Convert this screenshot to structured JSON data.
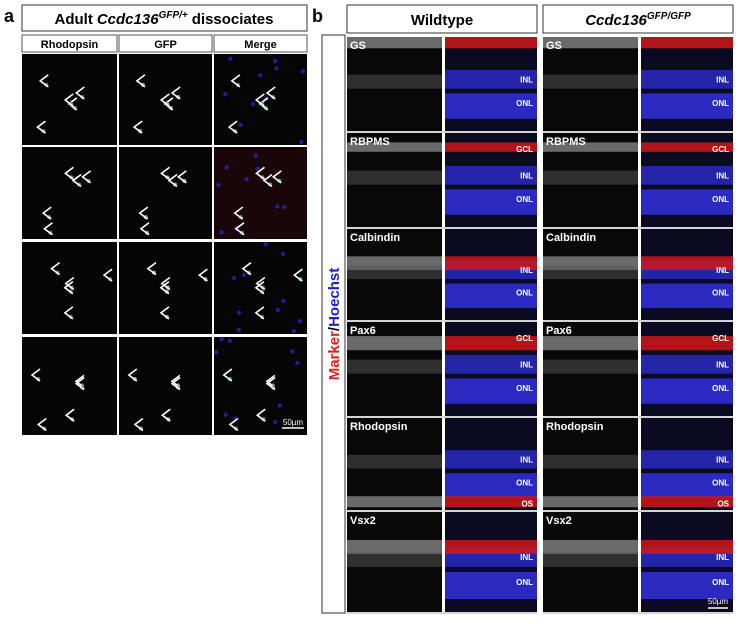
{
  "panel_a": {
    "label": "a",
    "title": {
      "prefix": "Adult",
      "gene": "Ccdc136",
      "superscript": "GFP/+",
      "suffix": "dissociates"
    },
    "columns": [
      "Rhodopsin",
      "GFP",
      "Merge"
    ],
    "scale_bar": "50µm"
  },
  "panel_b": {
    "label": "b",
    "side_label": {
      "marker": "Marker",
      "separator": "/",
      "stain": "Hoechst"
    },
    "columns": [
      {
        "text": "Wildtype"
      },
      {
        "gene": "Ccdc136",
        "superscript": "GFP/GFP"
      }
    ],
    "rows": [
      {
        "marker": "GS",
        "layers": [
          "INL",
          "ONL"
        ]
      },
      {
        "marker": "RBPMS",
        "layers": [
          "GCL",
          "INL",
          "ONL"
        ]
      },
      {
        "marker": "Calbindin",
        "layers": [
          "INL",
          "ONL"
        ]
      },
      {
        "marker": "Pax6",
        "layers": [
          "GCL",
          "INL",
          "ONL"
        ]
      },
      {
        "marker": "Rhodopsin",
        "layers": [
          "INL",
          "ONL",
          "OS"
        ]
      },
      {
        "marker": "Vsx2",
        "layers": [
          "INL",
          "ONL"
        ]
      }
    ],
    "scale_bar": "50µm"
  }
}
